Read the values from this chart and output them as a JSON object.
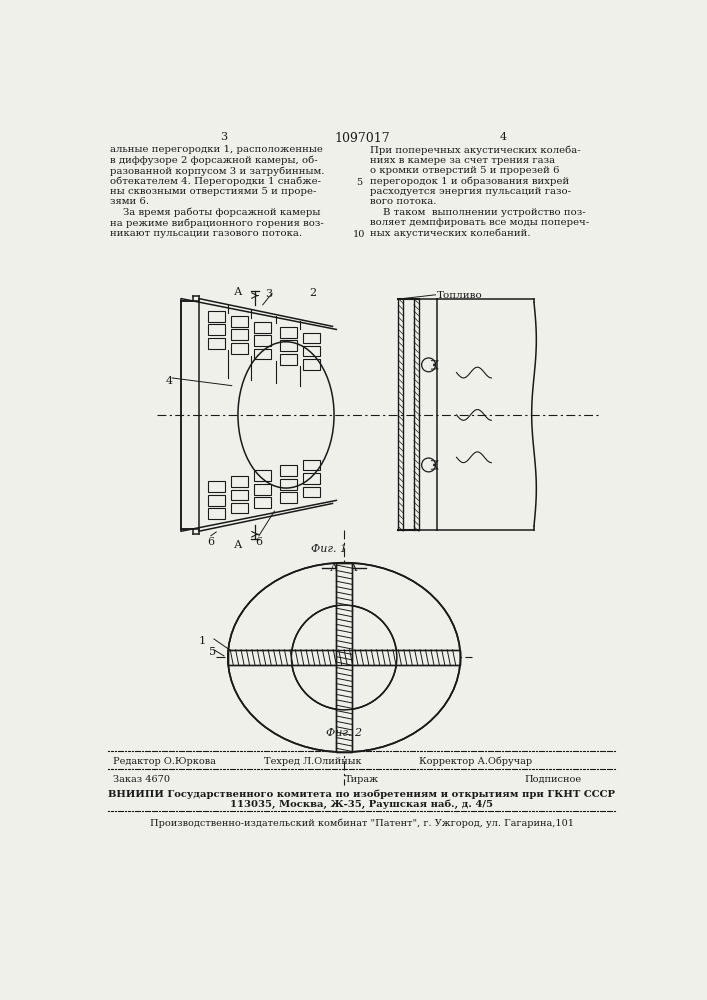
{
  "page_number_left": "3",
  "page_number_center": "1097017",
  "page_number_right": "4",
  "text_left": [
    "альные перегородки 1, расположенные",
    "в диффузоре 2 форсажной камеры, об-",
    "разованной корпусом 3 и затрубинным.",
    "обтекателем 4. Перегородки 1 снабже-",
    "ны сквозными отверстиями 5 и проре-",
    "зями 6.",
    "    За время работы форсажной камеры",
    "на режиме вибрационного горения воз-",
    "никают пульсации газового потока."
  ],
  "text_right": [
    "При поперечных акустических колеба-",
    "ниях в камере за счет трения газа",
    "о кромки отверстий 5 и прорезей 6",
    "перегородок 1 и образования вихрей",
    "расходуется энергия пульсаций газо-",
    "вого потока.",
    "    В таком  выполнении устройство поз-",
    "воляет демпфировать все моды попереч-",
    "ных акустических колебаний."
  ],
  "line_number_5": "5",
  "line_number_10": "10",
  "fig1_label": "Фиг. 1",
  "fig2_label": "Фиг. 2",
  "section_label": "А - А",
  "fuel_label": "Топливо",
  "label_A_top": "А",
  "label_A_bot": "А",
  "label_2": "2",
  "label_3": "3",
  "label_4": "4",
  "label_6a": "6",
  "label_6b": "6",
  "label_1": "1",
  "label_5": "5",
  "footer_line1_left": "Редактор О.Юркова",
  "footer_line1_mid": "Техред Л.Олийнык",
  "footer_line1_right": "Корректор А.Обручар",
  "footer_line2_left": "Заказ 4670",
  "footer_line2_mid": "Тираж",
  "footer_line2_right": "Подписное",
  "footer_line3": "ВНИИПИ Государственного комитета по изобретениям и открытиям при ГКНТ СССР",
  "footer_line4": "113035, Москва, Ж-35, Раушская наб., д. 4/5",
  "footer_line5": "Производственно-издательский комбинат \"Патент\", г. Ужгород, ул. Гагарина,101",
  "bg_color": "#f0f0eb",
  "line_color": "#1a1a1a",
  "text_color": "#1a1a1a"
}
